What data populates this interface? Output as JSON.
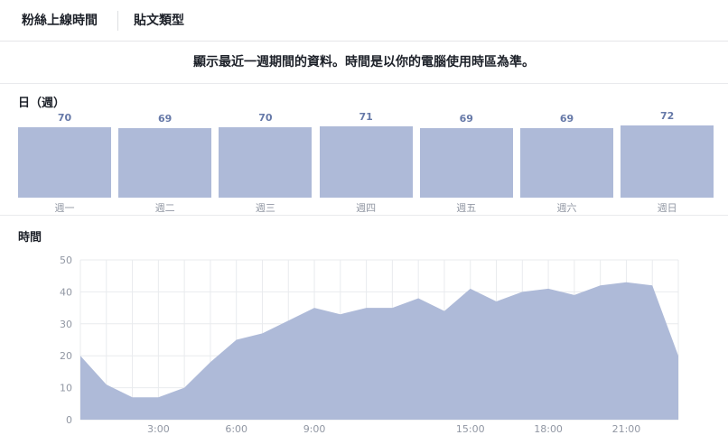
{
  "tabs": [
    {
      "label": "粉絲上線時間",
      "active": true
    },
    {
      "label": "貼文類型",
      "active": false
    }
  ],
  "notice": "顯示最近一週期間的資料。時間是以你的電腦使用時區為準。",
  "day_section": {
    "title": "日（週）",
    "days": [
      {
        "name": "週一",
        "value": 70
      },
      {
        "name": "週二",
        "value": 69
      },
      {
        "name": "週三",
        "value": 70
      },
      {
        "name": "週四",
        "value": 71
      },
      {
        "name": "週五",
        "value": 69
      },
      {
        "name": "週六",
        "value": 69
      },
      {
        "name": "週日",
        "value": 72
      }
    ]
  },
  "hour_section": {
    "title": "時間"
  },
  "colors": {
    "bar_fill": "#aebad8",
    "value_text": "#6679a8",
    "area_fill": "#aebad8",
    "grid": "#e9ebee"
  },
  "chart_data": {
    "type": "area",
    "title": "",
    "xlabel": "",
    "ylabel": "",
    "ylim": [
      0,
      50
    ],
    "yticks": [
      0,
      10,
      20,
      30,
      40,
      50
    ],
    "xtick_labels": [
      {
        "hour": 3,
        "label": "3:00"
      },
      {
        "hour": 6,
        "label": "6:00"
      },
      {
        "hour": 9,
        "label": "9:00"
      },
      {
        "hour": 15,
        "label": "15:00"
      },
      {
        "hour": 18,
        "label": "18:00"
      },
      {
        "hour": 21,
        "label": "21:00"
      }
    ],
    "x": [
      0,
      1,
      2,
      3,
      4,
      5,
      6,
      7,
      8,
      9,
      10,
      11,
      12,
      13,
      14,
      15,
      16,
      17,
      18,
      19,
      20,
      21,
      22,
      23
    ],
    "values": [
      20,
      11,
      7,
      7,
      10,
      18,
      25,
      27,
      31,
      35,
      33,
      35,
      35,
      38,
      34,
      41,
      37,
      40,
      41,
      39,
      42,
      43,
      42,
      20
    ],
    "grid": true
  }
}
